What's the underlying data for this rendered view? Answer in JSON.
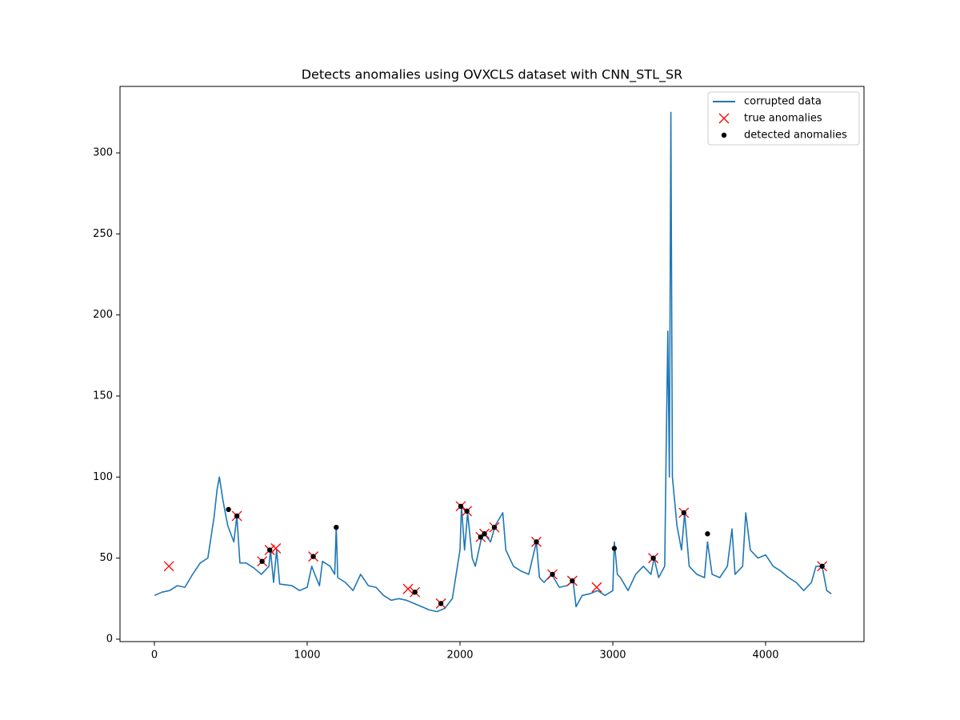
{
  "chart_data": {
    "type": "line",
    "title": "Detects anomalies using OVXCLS dataset with CNN_STL_SR",
    "xlim": [
      -225,
      4644
    ],
    "ylim": [
      -1.5,
      341
    ],
    "xticks": [
      0,
      1000,
      2000,
      3000,
      4000
    ],
    "yticks": [
      0,
      50,
      100,
      150,
      200,
      250,
      300
    ],
    "grid": false,
    "legend": "upper right",
    "series": [
      {
        "name": "corrupted data",
        "color": "#1f77b4",
        "marker": "line",
        "x": [
          0,
          50,
          100,
          150,
          200,
          250,
          300,
          350,
          390,
          410,
          425,
          450,
          480,
          520,
          540,
          560,
          600,
          650,
          700,
          750,
          760,
          780,
          800,
          820,
          900,
          950,
          1000,
          1030,
          1050,
          1080,
          1100,
          1150,
          1180,
          1190,
          1200,
          1250,
          1300,
          1350,
          1400,
          1450,
          1500,
          1550,
          1600,
          1650,
          1700,
          1750,
          1800,
          1850,
          1900,
          1950,
          2000,
          2010,
          2030,
          2050,
          2080,
          2100,
          2140,
          2160,
          2200,
          2230,
          2280,
          2300,
          2350,
          2400,
          2450,
          2500,
          2520,
          2550,
          2600,
          2650,
          2700,
          2740,
          2760,
          2800,
          2850,
          2900,
          2950,
          3000,
          3010,
          3030,
          3050,
          3100,
          3150,
          3200,
          3250,
          3270,
          3300,
          3340,
          3350,
          3360,
          3370,
          3380,
          3390,
          3420,
          3450,
          3470,
          3500,
          3550,
          3600,
          3620,
          3650,
          3700,
          3750,
          3780,
          3800,
          3850,
          3870,
          3900,
          3950,
          4000,
          4050,
          4100,
          4150,
          4200,
          4250,
          4300,
          4330,
          4370,
          4400,
          4430
        ],
        "values": [
          27,
          29,
          30,
          33,
          32,
          40,
          47,
          50,
          75,
          92,
          100,
          85,
          70,
          60,
          76,
          47,
          47,
          44,
          40,
          45,
          55,
          35,
          55,
          34,
          33,
          30,
          32,
          45,
          40,
          33,
          48,
          45,
          40,
          69,
          38,
          35,
          30,
          40,
          33,
          32,
          27,
          24,
          25,
          24,
          22,
          20,
          18,
          17,
          19,
          25,
          55,
          82,
          55,
          78,
          50,
          45,
          62,
          65,
          60,
          70,
          78,
          55,
          45,
          42,
          40,
          60,
          38,
          35,
          40,
          32,
          33,
          36,
          20,
          27,
          28,
          30,
          27,
          30,
          60,
          40,
          38,
          30,
          40,
          45,
          40,
          50,
          38,
          45,
          120,
          190,
          100,
          325,
          100,
          70,
          55,
          78,
          45,
          40,
          38,
          60,
          40,
          38,
          45,
          68,
          40,
          45,
          78,
          55,
          50,
          52,
          45,
          42,
          38,
          35,
          30,
          35,
          45,
          45,
          30,
          28
        ]
      },
      {
        "name": "true anomalies",
        "color": "#ff0000",
        "marker": "x",
        "x": [
          95,
          540,
          705,
          755,
          795,
          1040,
          1660,
          1705,
          1875,
          2005,
          2045,
          2135,
          2160,
          2225,
          2500,
          2605,
          2735,
          2895,
          3265,
          3465,
          4370
        ],
        "values": [
          45,
          76,
          48,
          55,
          56,
          51,
          31,
          29,
          22,
          82,
          79,
          63,
          65,
          69,
          60,
          40,
          36,
          32,
          50,
          78,
          45
        ]
      },
      {
        "name": "detected anomalies",
        "color": "#000000",
        "marker": "dot",
        "x": [
          485,
          540,
          705,
          755,
          1040,
          1190,
          1705,
          1875,
          2005,
          2045,
          2135,
          2160,
          2225,
          2500,
          2605,
          2735,
          3010,
          3265,
          3465,
          3620,
          4370
        ],
        "values": [
          80,
          76,
          48,
          55,
          51,
          69,
          29,
          22,
          82,
          79,
          63,
          65,
          69,
          60,
          40,
          36,
          56,
          50,
          78,
          65,
          45
        ]
      }
    ]
  }
}
